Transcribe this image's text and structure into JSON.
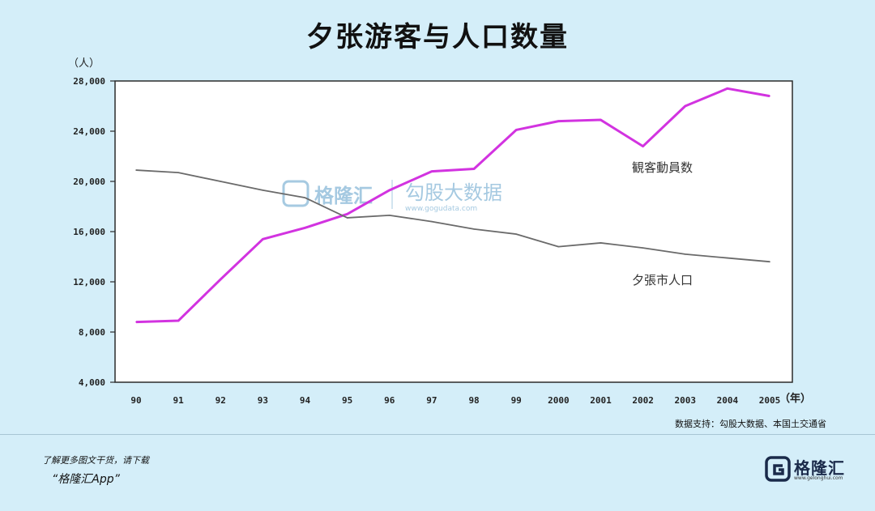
{
  "title": "夕张游客与人口数量",
  "source": "数据支持：勾股大数据、本国土交通省",
  "promo": {
    "line1": "了解更多图文干货，请下载",
    "line2": "“格隆汇App”"
  },
  "brand": {
    "name": "格隆汇",
    "url": "www.gelonghui.com",
    "color": "#1a2a4a"
  },
  "watermark": {
    "name": "格隆汇",
    "text": "勾股大数据",
    "url": "www.gogudata.com",
    "color": "#9cc4de"
  },
  "chart_data": {
    "type": "line",
    "ylabel": "（人）",
    "xlabel": "（年）",
    "ylim": [
      4000,
      28000
    ],
    "yticks": [
      4000,
      8000,
      12000,
      16000,
      20000,
      24000,
      28000
    ],
    "ytick_labels": [
      "4,000",
      "8,000",
      "12,000",
      "16,000",
      "20,000",
      "24,000",
      "28,000"
    ],
    "categories": [
      "90",
      "91",
      "92",
      "93",
      "94",
      "95",
      "96",
      "97",
      "98",
      "99",
      "2000",
      "2001",
      "2002",
      "2003",
      "2004",
      "2005"
    ],
    "series": [
      {
        "name": "観客動員数",
        "color": "#d233e0",
        "values": [
          8800,
          8900,
          12200,
          15400,
          16300,
          17400,
          19300,
          20800,
          21000,
          24100,
          24800,
          24900,
          22800,
          26000,
          27400,
          26800
        ]
      },
      {
        "name": "夕張市人口",
        "color": "#6a6a6a",
        "values": [
          20900,
          20700,
          20000,
          19300,
          18700,
          17100,
          17300,
          16800,
          16200,
          15800,
          14800,
          15100,
          14700,
          14200,
          13900,
          13600
        ]
      }
    ],
    "labels": [
      {
        "series": 0,
        "text": "観客動員数",
        "anchor": 12
      },
      {
        "series": 1,
        "text": "夕張市人口",
        "anchor": 12
      }
    ]
  }
}
